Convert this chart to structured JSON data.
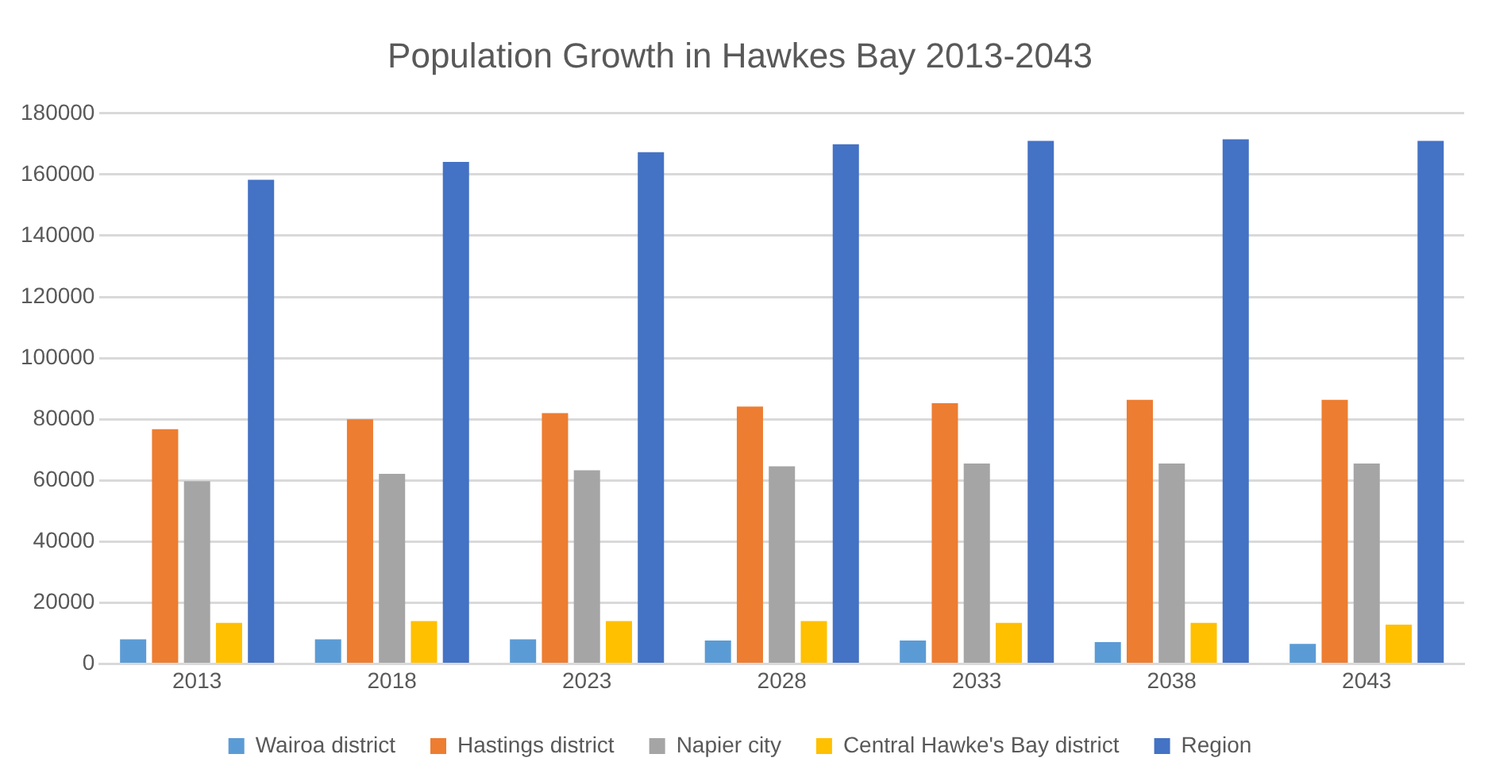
{
  "chart_data": {
    "type": "bar",
    "title": "Population Growth in Hawkes Bay 2013-2043",
    "categories": [
      "2013",
      "2018",
      "2023",
      "2028",
      "2033",
      "2038",
      "2043"
    ],
    "series": [
      {
        "name": "Wairoa district",
        "color": "#5b9bd5",
        "values": [
          8000,
          8000,
          8000,
          7600,
          7600,
          7100,
          6500
        ]
      },
      {
        "name": "Hastings district",
        "color": "#ed7d31",
        "values": [
          76700,
          80000,
          82000,
          84100,
          85200,
          86300,
          86300
        ]
      },
      {
        "name": "Napier city",
        "color": "#a5a5a5",
        "values": [
          59700,
          62100,
          63300,
          64600,
          65500,
          65500,
          65500
        ]
      },
      {
        "name": "Central Hawke's Bay district",
        "color": "#ffc000",
        "values": [
          13400,
          14000,
          14000,
          14000,
          13400,
          13400,
          12800
        ]
      },
      {
        "name": "Region",
        "color": "#4472c4",
        "values": [
          158300,
          164100,
          167300,
          169900,
          171000,
          171500,
          171000
        ]
      }
    ],
    "ylim": [
      0,
      180000
    ],
    "yticks": [
      0,
      20000,
      40000,
      60000,
      80000,
      100000,
      120000,
      140000,
      160000,
      180000
    ],
    "grid": "y",
    "legend": "bottom"
  }
}
